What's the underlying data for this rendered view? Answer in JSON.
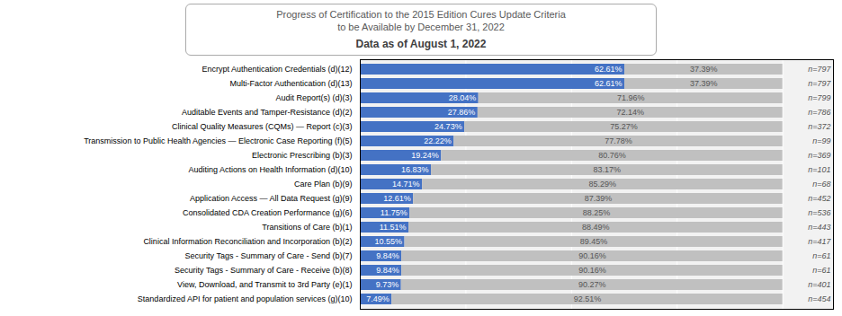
{
  "chart_data": {
    "type": "bar",
    "orientation": "horizontal",
    "stacked": true,
    "title": "Progress of Certification to the 2015 Edition Cures Update Criteria\nto be Available by December 31, 2022",
    "subtitle": "Data as of August 1, 2022",
    "categories": [
      "Encrypt Authentication Credentials (d)(12)",
      "Multi-Factor Authentication (d)(13)",
      "Audit Report(s) (d)(3)",
      "Auditable Events and Tamper-Resistance (d)(2)",
      "Clinical Quality Measures (CQMs) — Report (c)(3)",
      "Transmission to Public Health Agencies — Electronic Case Reporting (f)(5)",
      "Electronic Prescribing (b)(3)",
      "Auditing Actions on Health Information (d)(10)",
      "Care Plan (b)(9)",
      "Application Access — All Data Request (g)(9)",
      "Consolidated CDA Creation Performance (g)(6)",
      "Transitions of Care (b)(1)",
      "Clinical Information Reconciliation and Incorporation (b)(2)",
      "Security Tags - Summary of Care - Send (b)(7)",
      "Security Tags - Summary of Care - Receive (b)(8)",
      "View, Download, and Transmit to 3rd Party (e)(1)",
      "Standardized API for patient and population services (g)(10)"
    ],
    "series": [
      {
        "color": "#4472C4",
        "values": [
          62.61,
          62.61,
          28.04,
          27.86,
          24.73,
          22.22,
          19.24,
          16.83,
          14.71,
          12.61,
          11.75,
          11.51,
          10.55,
          9.84,
          9.84,
          9.73,
          7.49
        ],
        "value_labels": [
          "62.61%",
          "62.61%",
          "28.04%",
          "27.86%",
          "24.73%",
          "22.22%",
          "19.24%",
          "16.83%",
          "14.71%",
          "12.61%",
          "11.75%",
          "11.51%",
          "10.55%",
          "9.84%",
          "9.84%",
          "9.73%",
          "7.49%"
        ]
      },
      {
        "color": "#C0C0C0",
        "values": [
          37.39,
          37.39,
          71.96,
          72.14,
          75.27,
          77.78,
          80.76,
          83.17,
          85.29,
          87.39,
          88.25,
          88.49,
          89.45,
          90.16,
          90.16,
          90.27,
          92.51
        ],
        "value_labels": [
          "37.39%",
          "37.39%",
          "71.96%",
          "72.14%",
          "75.27%",
          "77.78%",
          "80.76%",
          "83.17%",
          "85.29%",
          "87.39%",
          "88.25%",
          "88.49%",
          "89.45%",
          "90.16%",
          "90.16%",
          "90.27%",
          "92.51%"
        ]
      }
    ],
    "annotations": [
      "n=797",
      "n=797",
      "n=799",
      "n=786",
      "n=372",
      "n=99",
      "n=369",
      "n=101",
      "n=68",
      "n=452",
      "n=536",
      "n=443",
      "n=417",
      "n=61",
      "n=61",
      "n=401",
      "n=454"
    ],
    "data_labels": true,
    "xlim": [
      0,
      112
    ],
    "xticks": [
      0,
      25,
      50,
      75,
      100
    ],
    "grid": true,
    "tick_labels": "y"
  }
}
